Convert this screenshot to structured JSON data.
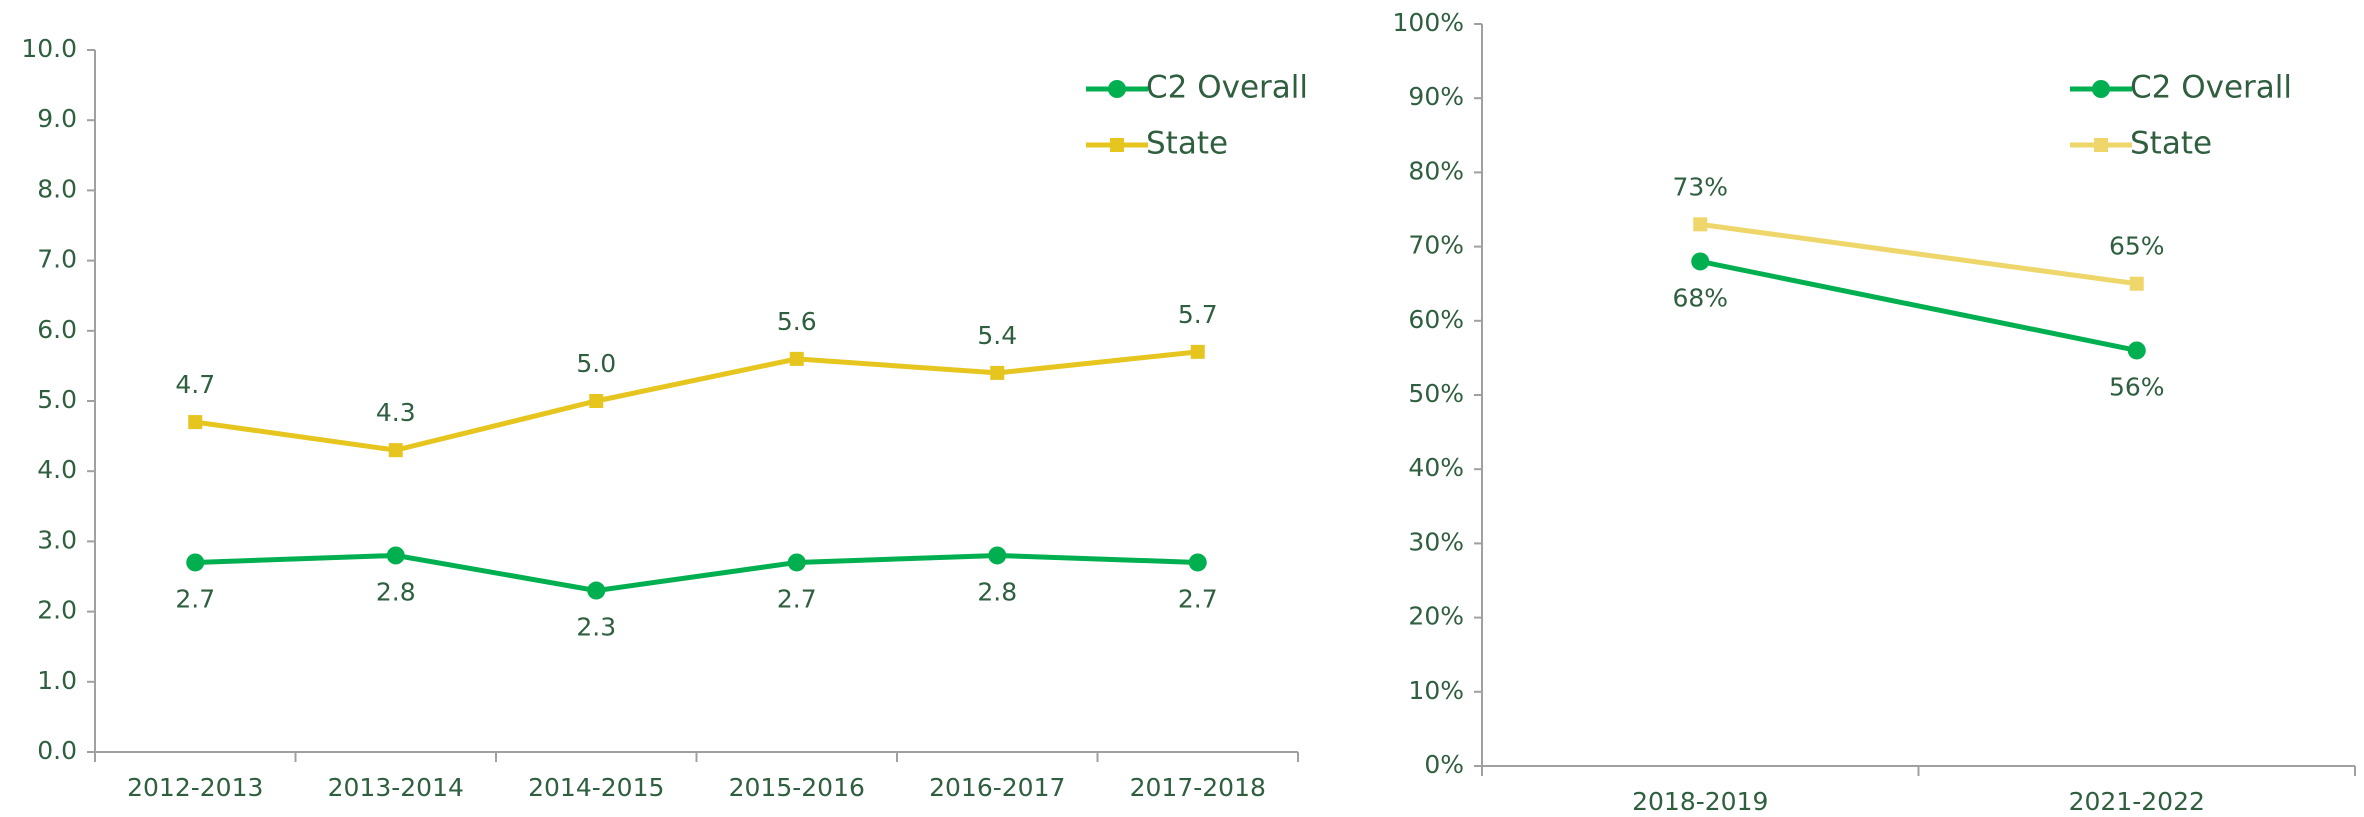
{
  "chart_data": [
    {
      "type": "line",
      "categories": [
        "2012-2013",
        "2013-2014",
        "2014-2015",
        "2015-2016",
        "2016-2017",
        "2017-2018"
      ],
      "series": [
        {
          "name": "C2 Overall",
          "color": "#00b050",
          "marker": "circle",
          "values": [
            2.7,
            2.8,
            2.3,
            2.7,
            2.8,
            2.7
          ],
          "value_labels": [
            "2.7",
            "2.8",
            "2.3",
            "2.7",
            "2.8",
            "2.7"
          ]
        },
        {
          "name": "State",
          "color": "#e6c51e",
          "marker": "square",
          "values": [
            4.7,
            4.3,
            5.0,
            5.6,
            5.4,
            5.7
          ],
          "value_labels": [
            "4.7",
            "4.3",
            "5.0",
            "5.6",
            "5.4",
            "5.7"
          ]
        }
      ],
      "ylim": [
        0,
        10
      ],
      "yticks": [
        {
          "value": 0,
          "label": "0.0"
        },
        {
          "value": 1,
          "label": "1.0"
        },
        {
          "value": 2,
          "label": "2.0"
        },
        {
          "value": 3,
          "label": "3.0"
        },
        {
          "value": 4,
          "label": "4.0"
        },
        {
          "value": 5,
          "label": "5.0"
        },
        {
          "value": 6,
          "label": "6.0"
        },
        {
          "value": 7,
          "label": "7.0"
        },
        {
          "value": 8,
          "label": "8.0"
        },
        {
          "value": 9,
          "label": "9.0"
        },
        {
          "value": 10,
          "label": "10.0"
        }
      ],
      "legend": "upper right"
    },
    {
      "type": "line",
      "categories": [
        "2018-2019",
        "2021-2022"
      ],
      "series": [
        {
          "name": "C2 Overall",
          "color": "#00b050",
          "marker": "circle",
          "values": [
            68,
            56
          ],
          "value_labels": [
            "68%",
            "56%"
          ]
        },
        {
          "name": "State",
          "color": "#eed66a",
          "marker": "square",
          "values": [
            73,
            65
          ],
          "value_labels": [
            "73%",
            "65%"
          ]
        }
      ],
      "ylim": [
        0,
        100
      ],
      "yticks": [
        {
          "value": 0,
          "label": "0%"
        },
        {
          "value": 10,
          "label": "10%"
        },
        {
          "value": 20,
          "label": "20%"
        },
        {
          "value": 30,
          "label": "30%"
        },
        {
          "value": 40,
          "label": "40%"
        },
        {
          "value": 50,
          "label": "50%"
        },
        {
          "value": 60,
          "label": "60%"
        },
        {
          "value": 70,
          "label": "70%"
        },
        {
          "value": 80,
          "label": "80%"
        },
        {
          "value": 90,
          "label": "90%"
        },
        {
          "value": 100,
          "label": "100%"
        }
      ],
      "legend": "upper right"
    }
  ]
}
